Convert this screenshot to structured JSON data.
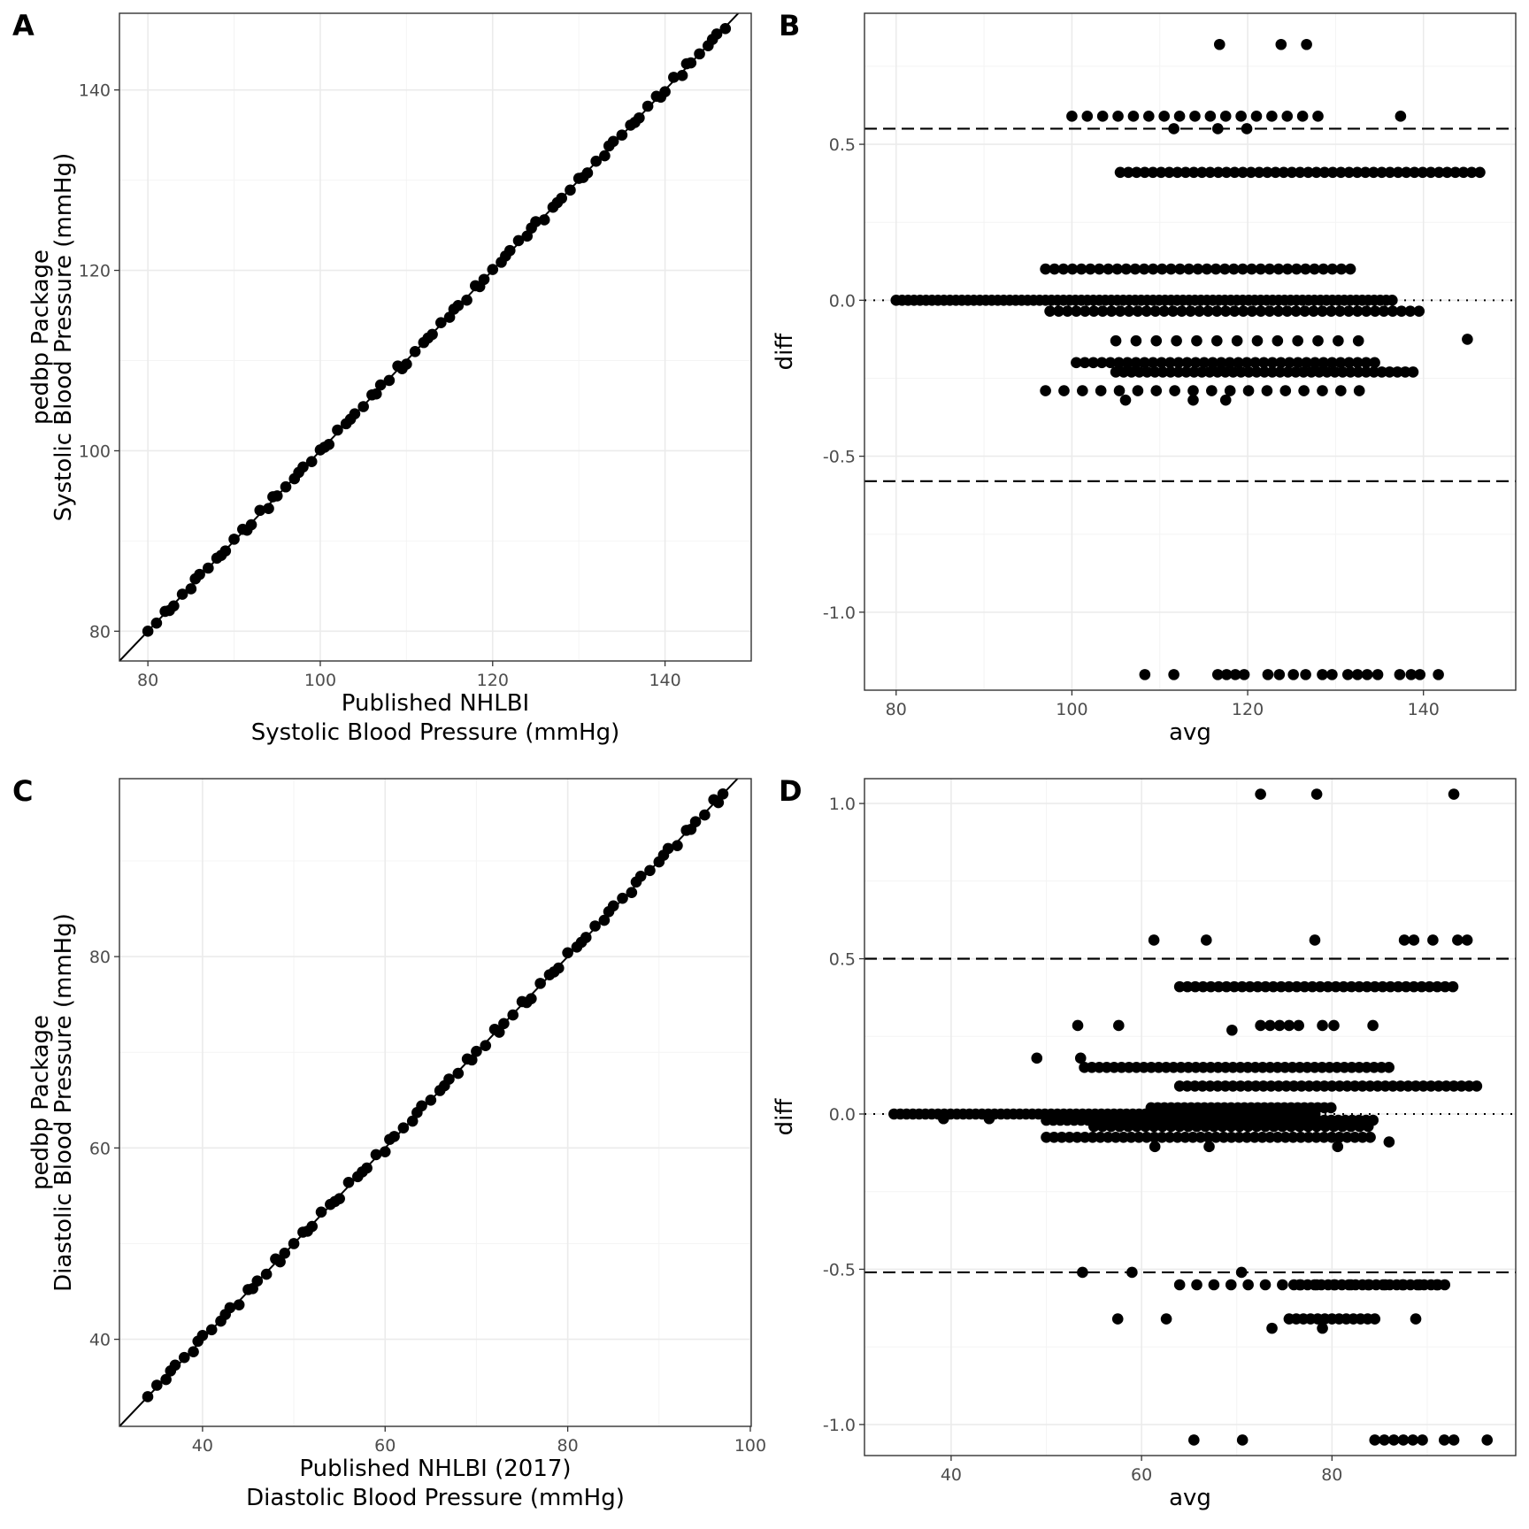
{
  "chart_data": [
    {
      "panel": "A",
      "type": "scatter",
      "xlabel": [
        "Published NHLBI",
        "Systolic Blood Pressure (mmHg)"
      ],
      "ylabel": [
        "pedbp Package",
        "Systolic Blood Pressure (mmHg)"
      ],
      "xlim": [
        76.7,
        150.0
      ],
      "ylim": [
        76.7,
        148.5
      ],
      "xticks": [
        80,
        100,
        120,
        140
      ],
      "yticks": [
        80,
        100,
        120,
        140
      ],
      "identity_line": true,
      "points": {
        "x_start": 80,
        "x_end": 147,
        "step": 1,
        "jitter": [
          0,
          -0.1,
          0.2,
          -0.2,
          0.1,
          -0.3,
          0.3,
          0,
          0.1,
          -0.1,
          0.2,
          0.3,
          -0.2,
          0.4,
          -0.4,
          0
        ]
      }
    },
    {
      "panel": "B",
      "type": "scatter",
      "xlabel": "avg",
      "ylabel": "diff",
      "xlim": [
        76.4,
        150.5
      ],
      "ylim": [
        -1.25,
        0.92
      ],
      "xticks": [
        80,
        100,
        120,
        140
      ],
      "yticks": [
        -1.0,
        -0.5,
        0.0,
        0.5
      ],
      "ytick_labels": [
        "-1.0",
        "-0.5",
        "0.0",
        "0.5"
      ],
      "hlines_dashed": [
        0.55,
        -0.58
      ],
      "hline_dotted": 0.0,
      "bands": [
        {
          "y": 0.0,
          "from": 80,
          "to": 136.5,
          "step": 0.68
        },
        {
          "y": -0.035,
          "from": 97.5,
          "to": 140,
          "step": 1.0
        },
        {
          "y": 0.41,
          "from": 105.5,
          "to": 147,
          "step": 0.93
        },
        {
          "y": 0.1,
          "from": 97,
          "to": 132,
          "step": 1.02
        },
        {
          "y": -0.2,
          "from": 100.5,
          "to": 135,
          "step": 0.97
        },
        {
          "y": -0.23,
          "from": 105,
          "to": 139,
          "step": 0.89
        },
        {
          "y": -0.13,
          "from": 105,
          "to": 134.5,
          "step": 2.3
        },
        {
          "y": -0.29,
          "from": 97,
          "to": 134,
          "step": 2.1
        },
        {
          "y": 0.59,
          "from": 100,
          "to": 128,
          "step": 1.75
        }
      ],
      "extra_points": [
        [
          116.8,
          0.82
        ],
        [
          123.8,
          0.82
        ],
        [
          126.7,
          0.82
        ],
        [
          137.4,
          0.59
        ],
        [
          145,
          -0.125
        ],
        [
          108.3,
          -1.2
        ],
        [
          111.6,
          -1.2
        ],
        [
          116.6,
          -1.2
        ],
        [
          117.6,
          -1.2
        ],
        [
          118.6,
          -1.2
        ],
        [
          119.6,
          -1.2
        ],
        [
          122.3,
          -1.2
        ],
        [
          123.6,
          -1.2
        ],
        [
          125.2,
          -1.2
        ],
        [
          126.6,
          -1.2
        ],
        [
          128.5,
          -1.2
        ],
        [
          129.6,
          -1.2
        ],
        [
          131.4,
          -1.2
        ],
        [
          132.5,
          -1.2
        ],
        [
          133.6,
          -1.2
        ],
        [
          134.8,
          -1.2
        ],
        [
          137.3,
          -1.2
        ],
        [
          138.6,
          -1.2
        ],
        [
          139.6,
          -1.2
        ],
        [
          141.7,
          -1.2
        ],
        [
          106.1,
          -0.32
        ],
        [
          113.8,
          -0.32
        ],
        [
          117.5,
          -0.32
        ],
        [
          111.6,
          0.55
        ],
        [
          116.6,
          0.55
        ],
        [
          119.9,
          0.55
        ]
      ]
    },
    {
      "panel": "C",
      "type": "scatter",
      "xlabel": [
        "Published NHLBI (2017)",
        "Diastolic Blood Pressure (mmHg)"
      ],
      "ylabel": [
        "pedbp Package",
        "Diastolic Blood Pressure (mmHg)"
      ],
      "xlim": [
        30.9,
        100.1
      ],
      "ylim": [
        30.9,
        98.6
      ],
      "xticks": [
        40,
        60,
        80,
        100
      ],
      "yticks": [
        40,
        60,
        80
      ],
      "identity_line": true,
      "points": {
        "x_start": 34,
        "x_end": 97,
        "step": 1,
        "jitter": [
          0,
          0.2,
          -0.2,
          0.3,
          0.1,
          -0.3,
          0.4,
          0,
          -0.1,
          0.3,
          -0.4,
          0.2,
          0.1,
          -0.2,
          0.4,
          0
        ]
      }
    },
    {
      "panel": "D",
      "type": "scatter",
      "xlabel": "avg",
      "ylabel": "diff",
      "xlim": [
        30.9,
        99.3
      ],
      "ylim": [
        -1.1,
        1.08
      ],
      "xticks": [
        40,
        60,
        80
      ],
      "yticks": [
        -1.0,
        -0.5,
        0.0,
        0.5,
        1.0
      ],
      "ytick_labels": [
        "-1.0",
        "-0.5",
        "0.0",
        "0.5",
        "1.0"
      ],
      "hlines_dashed": [
        0.5,
        -0.51
      ],
      "hline_dotted": 0.0,
      "bands": [
        {
          "y": 0.0,
          "from": 34,
          "to": 78.5,
          "step": 0.66
        },
        {
          "y": -0.02,
          "from": 50,
          "to": 84.5,
          "step": 0.73
        },
        {
          "y": -0.075,
          "from": 50,
          "to": 84.5,
          "step": 0.81
        },
        {
          "y": -0.04,
          "from": 55,
          "to": 84,
          "step": 0.9
        },
        {
          "y": 0.02,
          "from": 61,
          "to": 80,
          "step": 0.7
        },
        {
          "y": 0.15,
          "from": 54,
          "to": 86,
          "step": 0.78
        },
        {
          "y": 0.09,
          "from": 64,
          "to": 95.5,
          "step": 0.8
        },
        {
          "y": 0.41,
          "from": 64,
          "to": 93,
          "step": 0.82
        },
        {
          "y": -0.55,
          "from": 64,
          "to": 92.5,
          "step": 1.8
        },
        {
          "y": -0.55,
          "from": 76,
          "to": 92.5,
          "step": 0.72
        },
        {
          "y": -0.66,
          "from": 75.5,
          "to": 85,
          "step": 0.75
        }
      ],
      "extra_points": [
        [
          72.5,
          1.03
        ],
        [
          78.4,
          1.03
        ],
        [
          92.8,
          1.03
        ],
        [
          61.3,
          0.56
        ],
        [
          66.8,
          0.56
        ],
        [
          78.2,
          0.56
        ],
        [
          87.6,
          0.56
        ],
        [
          88.6,
          0.56
        ],
        [
          90.6,
          0.56
        ],
        [
          93.2,
          0.56
        ],
        [
          94.2,
          0.56
        ],
        [
          49,
          0.18
        ],
        [
          53.6,
          0.18
        ],
        [
          53.3,
          0.285
        ],
        [
          57.6,
          0.285
        ],
        [
          69.5,
          0.27
        ],
        [
          72.5,
          0.285
        ],
        [
          73.5,
          0.285
        ],
        [
          74.5,
          0.285
        ],
        [
          75.5,
          0.285
        ],
        [
          76.5,
          0.285
        ],
        [
          79,
          0.285
        ],
        [
          80.2,
          0.285
        ],
        [
          84.3,
          0.285
        ],
        [
          53.8,
          -0.51
        ],
        [
          59,
          -0.51
        ],
        [
          70.5,
          -0.51
        ],
        [
          57.5,
          -0.66
        ],
        [
          62.6,
          -0.66
        ],
        [
          73.7,
          -0.69
        ],
        [
          79,
          -0.69
        ],
        [
          88.8,
          -0.66
        ],
        [
          65.5,
          -1.05
        ],
        [
          70.6,
          -1.05
        ],
        [
          84.5,
          -1.05
        ],
        [
          85.5,
          -1.05
        ],
        [
          86.5,
          -1.05
        ],
        [
          87.5,
          -1.05
        ],
        [
          88.5,
          -1.05
        ],
        [
          89.5,
          -1.05
        ],
        [
          91.8,
          -1.05
        ],
        [
          92.8,
          -1.05
        ],
        [
          96.3,
          -1.05
        ],
        [
          39.2,
          -0.015
        ],
        [
          44,
          -0.015
        ],
        [
          61.4,
          -0.105
        ],
        [
          67.1,
          -0.105
        ],
        [
          80.6,
          -0.105
        ],
        [
          86,
          -0.09
        ]
      ]
    }
  ]
}
